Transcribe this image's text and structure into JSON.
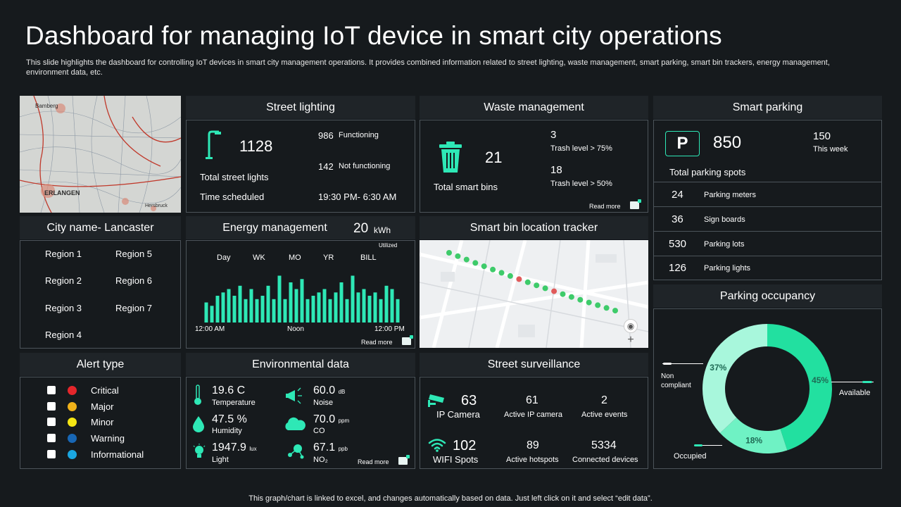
{
  "title": "Dashboard for managing IoT device in smart city operations",
  "subtitle": "This slide highlights the dashboard for controlling IoT devices in smart city management operations. It provides combined information related to street lighting, waste management, smart parking, smart bin trackers, energy management, environment data, etc.",
  "footer": "This graph/chart is linked to excel, and changes automatically based on data. Just left click on it and select “edit data”.",
  "colors": {
    "accent": "#2ee8b6",
    "background": "#161a1d",
    "header": "#1f2428",
    "border": "#4c545a"
  },
  "map_labels": {
    "top": "Bamberg",
    "bottom": "ERLANGEN",
    "corner": "Hersbruck"
  },
  "street_lighting": {
    "header": "Street lighting",
    "icon": "streetlight-icon",
    "total": "1128",
    "total_label": "Total street lights",
    "functioning_value": "986",
    "functioning_label": "Functioning",
    "not_functioning_value": "142",
    "not_functioning_label": "Not functioning",
    "scheduled_label": "Time scheduled",
    "scheduled_value": "19:30 PM- 6:30 AM"
  },
  "waste": {
    "header": "Waste management",
    "icon": "trash-icon",
    "total": "21",
    "total_label": "Total smart bins",
    "high_value": "3",
    "high_label": "Trash level > 75%",
    "mid_value": "18",
    "mid_label": "Trash level > 50%",
    "read_more": "Read more"
  },
  "parking": {
    "header": "Smart parking",
    "icon_letter": "P",
    "total": "850",
    "total_label": "Total parking spots",
    "week_value": "150",
    "week_label": "This week",
    "rows": [
      {
        "value": "24",
        "label": "Parking meters"
      },
      {
        "value": "36",
        "label": "Sign boards"
      },
      {
        "value": "530",
        "label": "Parking lots"
      },
      {
        "value": "126",
        "label": "Parking lights"
      }
    ]
  },
  "city": {
    "header": "City name- Lancaster",
    "regions": [
      "Region 1",
      "Region 5",
      "Region 2",
      "Region 6",
      "Region 3",
      "Region 7",
      "Region 4"
    ]
  },
  "energy": {
    "header": "Energy management",
    "kwh_value": "20",
    "kwh_unit": "kWh",
    "kwh_label": "Utilized",
    "tabs": [
      "Day",
      "WK",
      "MO",
      "YR",
      "BILL"
    ],
    "x_labels": [
      "12:00 AM",
      "Noon",
      "12:00 PM"
    ],
    "read_more": "Read more"
  },
  "chart_data": {
    "type": "bar",
    "title": "",
    "xlabel": "",
    "ylabel": "",
    "values": [
      3,
      2.5,
      4,
      4.5,
      5,
      4,
      5.5,
      3.5,
      5,
      3.5,
      4,
      5.5,
      3.5,
      7,
      3.5,
      6,
      5,
      6.5,
      3.5,
      4,
      4.5,
      5,
      3.5,
      4.5,
      6,
      3.5,
      7,
      4.5,
      5,
      4,
      4.5,
      3.5,
      5.5,
      5,
      3.5
    ],
    "ylim": [
      0,
      8
    ]
  },
  "bin_tracker": {
    "header": "Smart bin location tracker",
    "pins": [
      {
        "status": "ok"
      },
      {
        "status": "ok"
      },
      {
        "status": "ok"
      },
      {
        "status": "ok"
      },
      {
        "status": "ok"
      },
      {
        "status": "ok"
      },
      {
        "status": "ok"
      },
      {
        "status": "ok"
      },
      {
        "status": "full"
      },
      {
        "status": "ok"
      },
      {
        "status": "ok"
      },
      {
        "status": "ok"
      },
      {
        "status": "full"
      },
      {
        "status": "ok"
      },
      {
        "status": "ok"
      },
      {
        "status": "ok"
      },
      {
        "status": "ok"
      },
      {
        "status": "ok"
      },
      {
        "status": "ok"
      },
      {
        "status": "ok"
      }
    ]
  },
  "alerts": {
    "header": "Alert type",
    "items": [
      {
        "label": "Critical",
        "color": "#e5262b"
      },
      {
        "label": "Major",
        "color": "#f0b21a"
      },
      {
        "label": "Minor",
        "color": "#f5e614"
      },
      {
        "label": "Warning",
        "color": "#1867b5"
      },
      {
        "label": "Informational",
        "color": "#1aa6e0"
      }
    ]
  },
  "environment": {
    "header": "Environmental data",
    "temperature": {
      "value": "19.6 C",
      "label": "Temperature",
      "icon": "thermometer-icon"
    },
    "humidity": {
      "value": "47.5 %",
      "label": "Humidity",
      "icon": "droplet-icon"
    },
    "light": {
      "value": "1947.9",
      "unit": "lux",
      "label": "Light",
      "icon": "lightbulb-icon"
    },
    "noise": {
      "value": "60.0",
      "unit": "dB",
      "label": "Noise",
      "icon": "megaphone-icon"
    },
    "co": {
      "value": "70.0",
      "unit": "ppm",
      "label": "CO",
      "icon": "cloud-icon"
    },
    "no2": {
      "value": "67.1",
      "unit": "ppb",
      "label": "NO₂",
      "icon": "molecule-icon"
    },
    "read_more": "Read more"
  },
  "surveillance": {
    "header": "Street surveillance",
    "ip_value": "63",
    "ip_label": "IP Camera",
    "active_ip_value": "61",
    "active_ip_label": "Active IP camera",
    "events_value": "2",
    "events_label": "Active events",
    "wifi_value": "102",
    "wifi_label": "WIFI Spots",
    "hotspots_value": "89",
    "hotspots_label": "Active hotspots",
    "connected_value": "5334",
    "connected_label": "Connected devices"
  },
  "occupancy": {
    "header": "Parking occupancy",
    "slices": [
      {
        "label": "Available",
        "value": 45,
        "text": "45%",
        "color": "#22e0a0"
      },
      {
        "label": "Occupied",
        "value": 18,
        "text": "18%",
        "color": "#6ff2c4"
      },
      {
        "label": "Non compliant",
        "value": 37,
        "text": "37%",
        "color": "#a8f7dc"
      }
    ],
    "label_available": "Available",
    "label_occupied": "Occupied",
    "label_noncompliant": "Non compliant"
  }
}
